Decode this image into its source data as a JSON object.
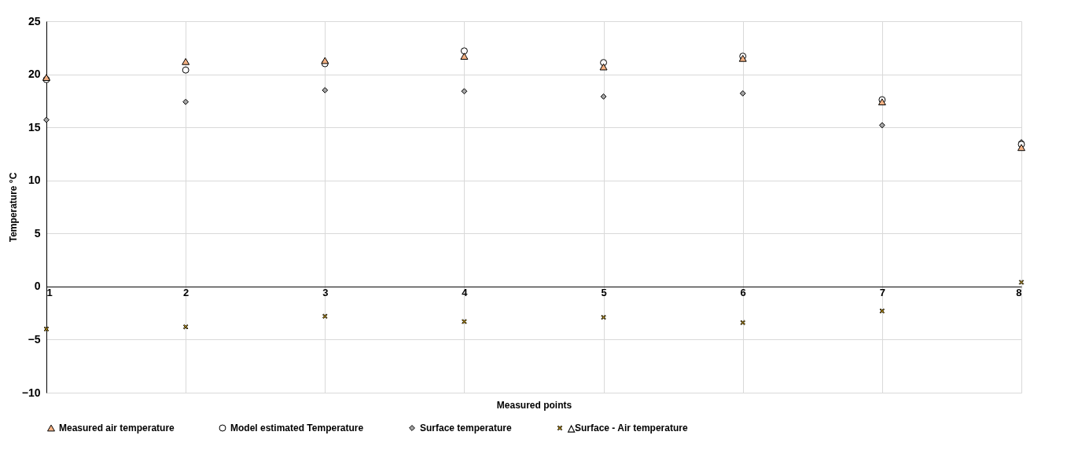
{
  "chart_data": {
    "type": "scatter",
    "xlabel": "Measured points",
    "ylabel": "Temperature °C",
    "x": [
      1,
      2,
      3,
      4,
      5,
      6,
      7,
      8
    ],
    "xlim": [
      1,
      8
    ],
    "xticks": [
      1,
      2,
      3,
      4,
      5,
      6,
      7,
      8
    ],
    "ylim": [
      -10,
      25
    ],
    "yticks": [
      -10,
      -5,
      0,
      5,
      10,
      15,
      20,
      25
    ],
    "grid": true,
    "legend": "bottom",
    "series": [
      {
        "name": "Measured air temperature",
        "color": "#f4b183",
        "marker": "triangle",
        "values": [
          19.7,
          21.2,
          21.3,
          21.7,
          20.7,
          21.5,
          17.4,
          13.1
        ]
      },
      {
        "name": "Model estimated Temperature",
        "color": "#ffffff",
        "marker": "circle",
        "values": [
          19.5,
          20.4,
          21.0,
          22.2,
          21.1,
          21.7,
          17.6,
          13.4
        ]
      },
      {
        "name": "Surface temperature",
        "color": "#a6a6a6",
        "marker": "diamond",
        "values": [
          15.7,
          17.4,
          18.5,
          18.4,
          17.9,
          18.2,
          15.2,
          13.6
        ]
      },
      {
        "name": "△Surface - Air temperature",
        "color": "#ffc000",
        "marker": "cross",
        "values": [
          -4.0,
          -3.8,
          -2.8,
          -3.3,
          -2.9,
          -3.4,
          -2.3,
          0.4
        ]
      }
    ]
  }
}
